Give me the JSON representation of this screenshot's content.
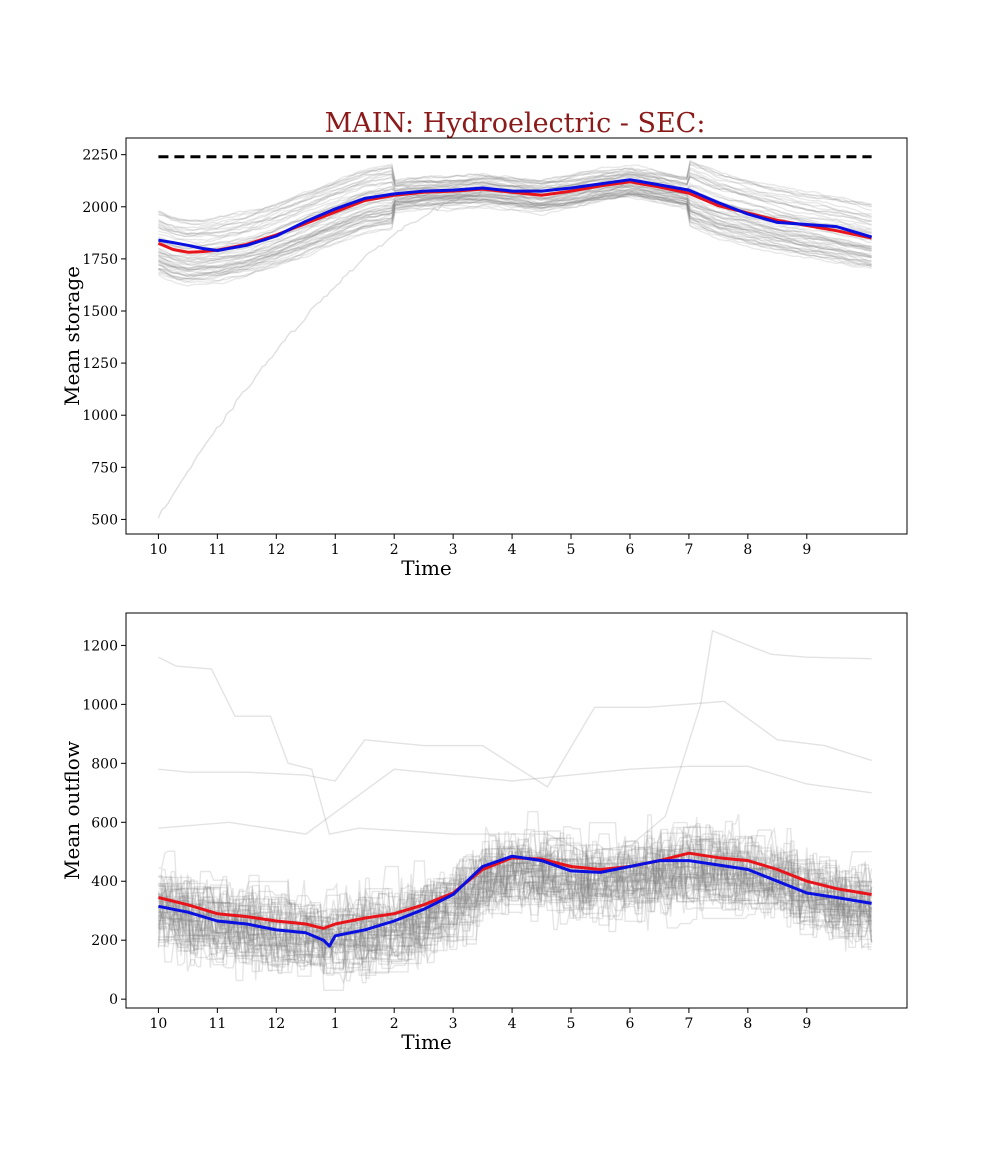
{
  "title": "MAIN: Hydroelectric - SEC:",
  "colors": {
    "title": "#8b1a1a",
    "ensemble": "#808080",
    "mean_series_red": "#e8141b",
    "mean_series_blue": "#0a10e0",
    "reference_line": "#000000"
  },
  "chart_data": [
    {
      "type": "line",
      "id": "storage",
      "xlabel": "Time",
      "ylabel": "Mean storage",
      "x_tick_labels": [
        "10",
        "11",
        "12",
        "1",
        "2",
        "3",
        "4",
        "5",
        "6",
        "7",
        "8",
        "9"
      ],
      "x_tick_positions": [
        0,
        1,
        2,
        3,
        4,
        5,
        6,
        7,
        8,
        9,
        10,
        11
      ],
      "xlim": [
        -0.55,
        12.7
      ],
      "y_ticks": [
        500,
        750,
        1000,
        1250,
        1500,
        1750,
        2000,
        2250
      ],
      "ylim": [
        430,
        2330
      ],
      "grid": false,
      "reference_line": {
        "y": 2240,
        "style": "dashed"
      },
      "series": [
        {
          "color": "red",
          "x": [
            0,
            0.25,
            0.5,
            0.75,
            1,
            1.5,
            2,
            2.5,
            3,
            3.5,
            4,
            4.5,
            5,
            5.5,
            6,
            6.5,
            7,
            7.5,
            8,
            8.5,
            9,
            9.5,
            10,
            10.5,
            11,
            11.5,
            12.1
          ],
          "y": [
            1825,
            1795,
            1782,
            1785,
            1792,
            1820,
            1865,
            1920,
            1975,
            2030,
            2055,
            2070,
            2075,
            2085,
            2070,
            2055,
            2075,
            2100,
            2120,
            2095,
            2065,
            2005,
            1970,
            1935,
            1910,
            1885,
            1850
          ]
        },
        {
          "color": "blue",
          "x": [
            0,
            0.25,
            0.5,
            0.75,
            1,
            1.5,
            2,
            2.5,
            3,
            3.5,
            4,
            4.5,
            5,
            5.5,
            6,
            6.5,
            7,
            7.5,
            8,
            8.5,
            9,
            9.5,
            10,
            10.5,
            11,
            11.5,
            12.1
          ],
          "y": [
            1840,
            1828,
            1815,
            1800,
            1790,
            1815,
            1860,
            1930,
            1990,
            2040,
            2062,
            2075,
            2080,
            2090,
            2075,
            2075,
            2090,
            2110,
            2130,
            2105,
            2080,
            2020,
            1965,
            1925,
            1915,
            1905,
            1855
          ]
        }
      ],
      "ensemble": {
        "members": 55,
        "color": "gray",
        "opacity": 0.18,
        "y_range": [
          510,
          2230
        ]
      }
    },
    {
      "type": "line",
      "id": "outflow",
      "xlabel": "Time",
      "ylabel": "Mean outflow",
      "x_tick_labels": [
        "10",
        "11",
        "12",
        "1",
        "2",
        "3",
        "4",
        "5",
        "6",
        "7",
        "8",
        "9"
      ],
      "x_tick_positions": [
        0,
        1,
        2,
        3,
        4,
        5,
        6,
        7,
        8,
        9,
        10,
        11
      ],
      "xlim": [
        -0.55,
        12.7
      ],
      "y_ticks": [
        0,
        200,
        400,
        600,
        800,
        1000,
        1200
      ],
      "ylim": [
        -30,
        1310
      ],
      "grid": false,
      "series": [
        {
          "color": "red",
          "x": [
            0,
            0.5,
            1,
            1.5,
            2,
            2.5,
            2.8,
            3,
            3.5,
            4,
            4.5,
            5,
            5.5,
            6,
            6.5,
            7,
            7.5,
            8,
            8.5,
            9,
            9.5,
            10,
            10.5,
            11,
            11.5,
            12.1
          ],
          "y": [
            345,
            320,
            290,
            280,
            265,
            255,
            240,
            255,
            275,
            290,
            320,
            360,
            440,
            480,
            475,
            450,
            440,
            450,
            470,
            495,
            480,
            470,
            440,
            400,
            375,
            355
          ]
        },
        {
          "color": "blue",
          "x": [
            0,
            0.5,
            1,
            1.5,
            2,
            2.5,
            2.8,
            2.9,
            3,
            3.5,
            4,
            4.5,
            5,
            5.5,
            6,
            6.5,
            7,
            7.5,
            8,
            8.5,
            9,
            9.5,
            10,
            10.5,
            11,
            11.5,
            12.1
          ],
          "y": [
            315,
            295,
            265,
            255,
            235,
            225,
            200,
            180,
            215,
            235,
            265,
            305,
            355,
            450,
            485,
            470,
            435,
            430,
            450,
            470,
            470,
            455,
            440,
            400,
            360,
            345,
            325
          ]
        }
      ],
      "ensemble": {
        "members": 55,
        "color": "gray",
        "opacity": 0.2,
        "y_range": [
          30,
          1250
        ]
      }
    }
  ]
}
